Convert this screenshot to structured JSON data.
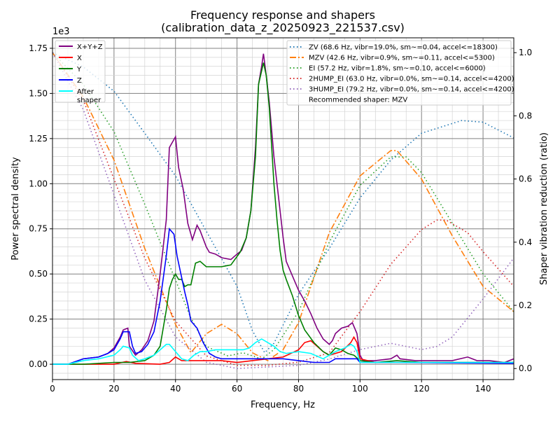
{
  "chart_data": {
    "type": "line",
    "title": "Frequency response and shapers",
    "subtitle": "(calibration_data_z_20250923_221537.csv)",
    "xlabel": "Frequency, Hz",
    "ylabel": "Power spectral density",
    "y2label": "Shaper vibration reduction (ratio)",
    "y_offset_label": "1e3",
    "xlim": [
      0,
      150
    ],
    "ylim": [
      -0.085,
      1.808
    ],
    "y2lim": [
      -0.035,
      1.047
    ],
    "xticks": [
      "0",
      "20",
      "40",
      "60",
      "80",
      "100",
      "120",
      "140"
    ],
    "yticks": [
      "0.00",
      "0.25",
      "0.50",
      "0.75",
      "1.00",
      "1.25",
      "1.50",
      "1.75"
    ],
    "y2ticks": [
      "0.0",
      "0.2",
      "0.4",
      "0.6",
      "0.8",
      "1.0"
    ],
    "grid": true,
    "legend_psd_placement": "top-left",
    "legend_shaper_placement": "top-right",
    "psd_series": [
      {
        "name": "X+Y+Z",
        "color": "#800080",
        "x": [
          0,
          5,
          10,
          15,
          18,
          20,
          22,
          23,
          24.5,
          25,
          27,
          29,
          31,
          33,
          35,
          37,
          38,
          40,
          41,
          42.5,
          44,
          45.5,
          47,
          48,
          50,
          51,
          53,
          55,
          58,
          60,
          61.5,
          63,
          64.5,
          66,
          67,
          68,
          68.6,
          69.5,
          70.5,
          72,
          74,
          75,
          76,
          78,
          80,
          82,
          84,
          86,
          88,
          90,
          91,
          92,
          94,
          96,
          97.5,
          99,
          100,
          101,
          105,
          110,
          112,
          113,
          118,
          125,
          130,
          135,
          138,
          142,
          147,
          150
        ],
        "y": [
          0,
          0,
          0.03,
          0.04,
          0.06,
          0.09,
          0.15,
          0.19,
          0.2,
          0.1,
          0.05,
          0.08,
          0.13,
          0.24,
          0.5,
          0.8,
          1.2,
          1.26,
          1.09,
          0.97,
          0.78,
          0.69,
          0.77,
          0.74,
          0.65,
          0.62,
          0.61,
          0.59,
          0.58,
          0.61,
          0.63,
          0.7,
          0.85,
          1.2,
          1.55,
          1.65,
          1.72,
          1.6,
          1.45,
          1.15,
          0.85,
          0.7,
          0.57,
          0.49,
          0.41,
          0.35,
          0.28,
          0.2,
          0.14,
          0.11,
          0.13,
          0.17,
          0.2,
          0.21,
          0.23,
          0.17,
          0.05,
          0.02,
          0.02,
          0.03,
          0.05,
          0.03,
          0.02,
          0.02,
          0.02,
          0.04,
          0.02,
          0.02,
          0.01,
          0.03
        ]
      },
      {
        "name": "X",
        "color": "#ff0000",
        "x": [
          0,
          10,
          20,
          24,
          27,
          35,
          38,
          40,
          42,
          50,
          55,
          60,
          65,
          70,
          75,
          80,
          82,
          84,
          86,
          88,
          90,
          94,
          97,
          98,
          99,
          100,
          105,
          150
        ],
        "y": [
          0,
          0,
          0,
          0.015,
          0.005,
          0,
          0.01,
          0.04,
          0.02,
          0.02,
          0.02,
          0.01,
          0.02,
          0.03,
          0.04,
          0.08,
          0.12,
          0.13,
          0.1,
          0.07,
          0.05,
          0.07,
          0.12,
          0.15,
          0.12,
          0.03,
          0.01,
          0.01
        ]
      },
      {
        "name": "Y",
        "color": "#008000",
        "x": [
          0,
          10,
          20,
          25,
          30,
          33,
          35,
          37,
          38,
          39,
          40,
          41,
          42,
          43,
          44,
          45,
          46.5,
          48,
          50,
          52,
          55,
          58,
          61,
          63,
          64.5,
          66,
          67,
          68.6,
          69.5,
          70.5,
          72,
          73,
          74,
          75,
          76,
          78,
          80,
          82,
          85,
          88,
          90,
          92,
          94,
          96,
          98,
          100,
          105,
          112,
          120,
          150
        ],
        "y": [
          0,
          0,
          0.01,
          0.01,
          0.02,
          0.05,
          0.1,
          0.3,
          0.42,
          0.47,
          0.5,
          0.47,
          0.47,
          0.43,
          0.44,
          0.44,
          0.56,
          0.57,
          0.54,
          0.54,
          0.54,
          0.55,
          0.62,
          0.7,
          0.85,
          1.15,
          1.55,
          1.67,
          1.6,
          1.42,
          1.0,
          0.8,
          0.63,
          0.52,
          0.47,
          0.38,
          0.27,
          0.19,
          0.12,
          0.07,
          0.05,
          0.09,
          0.08,
          0.06,
          0.05,
          0.02,
          0.01,
          0.02,
          0.01,
          0.01
        ]
      },
      {
        "name": "Z",
        "color": "#0000ff",
        "x": [
          0,
          5,
          10,
          15,
          18,
          20,
          22,
          23,
          25,
          26,
          27,
          29,
          31,
          33,
          35,
          37,
          38,
          39.5,
          40.5,
          42,
          43,
          44,
          45,
          47,
          49,
          51,
          53,
          55,
          60,
          65,
          70,
          75,
          80,
          85,
          90,
          92,
          95,
          99,
          100,
          110,
          150
        ],
        "y": [
          0,
          0,
          0.03,
          0.04,
          0.06,
          0.08,
          0.14,
          0.18,
          0.18,
          0.1,
          0.06,
          0.07,
          0.11,
          0.18,
          0.35,
          0.6,
          0.75,
          0.72,
          0.6,
          0.48,
          0.4,
          0.33,
          0.24,
          0.2,
          0.12,
          0.06,
          0.04,
          0.03,
          0.03,
          0.03,
          0.03,
          0.03,
          0.02,
          0.01,
          0.01,
          0.03,
          0.03,
          0.03,
          0.01,
          0.01,
          0.005
        ]
      },
      {
        "name": "After\nshaper",
        "color": "#00ffff",
        "x": [
          0,
          5,
          10,
          15,
          20,
          22,
          23,
          25,
          26,
          28,
          30,
          33,
          35,
          37,
          38,
          40,
          42,
          44,
          46,
          48,
          50,
          53,
          58,
          62,
          64,
          66,
          68,
          70,
          72,
          74,
          76,
          80,
          84,
          88,
          90,
          92,
          95,
          97,
          98,
          99,
          100,
          110,
          150
        ],
        "y": [
          0,
          0,
          0.02,
          0.03,
          0.05,
          0.08,
          0.1,
          0.09,
          0.05,
          0.02,
          0.03,
          0.05,
          0.08,
          0.11,
          0.11,
          0.07,
          0.03,
          0.02,
          0.05,
          0.07,
          0.07,
          0.08,
          0.08,
          0.08,
          0.09,
          0.12,
          0.14,
          0.12,
          0.1,
          0.07,
          0.06,
          0.07,
          0.06,
          0.03,
          0.05,
          0.07,
          0.09,
          0.11,
          0.1,
          0.07,
          0.01,
          0.01,
          0.01
        ]
      }
    ],
    "shaper_series": [
      {
        "name": "ZV (68.6 Hz, vibr=19.0%, sm~=0.04, accel<=18300)",
        "color": "#1f77b4",
        "dash": "dot",
        "x": [
          0,
          10,
          20,
          30,
          40,
          50,
          60,
          65,
          69,
          72,
          80,
          90,
          100,
          110,
          120,
          133,
          140,
          150
        ],
        "y": [
          1.0,
          0.955,
          0.878,
          0.745,
          0.61,
          0.435,
          0.26,
          0.12,
          0.05,
          0.08,
          0.235,
          0.38,
          0.54,
          0.66,
          0.745,
          0.785,
          0.78,
          0.73
        ]
      },
      {
        "name": "MZV (42.6 Hz, vibr=0.9%, sm~=0.11, accel<=5300)",
        "color": "#ff7f0e",
        "dash": "dashdot",
        "x": [
          0,
          10,
          20,
          30,
          40,
          45,
          50,
          55,
          60,
          65,
          70,
          75,
          80,
          90,
          100,
          110,
          112,
          120,
          130,
          140,
          150
        ],
        "y": [
          1.0,
          0.86,
          0.66,
          0.38,
          0.14,
          0.05,
          0.11,
          0.14,
          0.11,
          0.05,
          0.025,
          0.06,
          0.145,
          0.43,
          0.61,
          0.69,
          0.69,
          0.6,
          0.42,
          0.26,
          0.18
        ]
      },
      {
        "name": "EI (57.2 Hz, vibr=1.8%, sm~=0.10, accel<=6000)",
        "color": "#2ca02c",
        "dash": "dot",
        "x": [
          0,
          10,
          20,
          30,
          40,
          45,
          50,
          57,
          62,
          68,
          72,
          80,
          90,
          100,
          110,
          115,
          120,
          130,
          140,
          150
        ],
        "y": [
          1.0,
          0.9,
          0.75,
          0.52,
          0.28,
          0.16,
          0.07,
          0.04,
          0.05,
          0.03,
          0.06,
          0.18,
          0.4,
          0.58,
          0.67,
          0.67,
          0.62,
          0.46,
          0.3,
          0.18
        ]
      },
      {
        "name": "2HUMP_EI (63.0 Hz, vibr=0.0%, sm~=0.14, accel<=4200)",
        "color": "#d62728",
        "dash": "dot",
        "x": [
          0,
          10,
          20,
          30,
          40,
          50,
          60,
          70,
          80,
          90,
          100,
          110,
          120,
          125,
          128,
          135,
          140,
          150
        ],
        "y": [
          1.0,
          0.85,
          0.6,
          0.35,
          0.15,
          0.04,
          0.01,
          0.01,
          0.02,
          0.05,
          0.18,
          0.33,
          0.44,
          0.47,
          0.47,
          0.43,
          0.37,
          0.26
        ]
      },
      {
        "name": "3HUMP_EI (79.2 Hz, vibr=0.0%, sm~=0.14, accel<=4200)",
        "color": "#9467bd",
        "dash": "dot",
        "x": [
          0,
          10,
          20,
          30,
          40,
          50,
          60,
          80,
          90,
          100,
          110,
          115,
          120,
          125,
          130,
          140,
          150
        ],
        "y": [
          1.0,
          0.82,
          0.55,
          0.28,
          0.1,
          0.02,
          0.0,
          0.01,
          0.03,
          0.06,
          0.08,
          0.07,
          0.06,
          0.07,
          0.1,
          0.22,
          0.35
        ]
      }
    ],
    "recommended": "Recommended shaper: MZV"
  }
}
